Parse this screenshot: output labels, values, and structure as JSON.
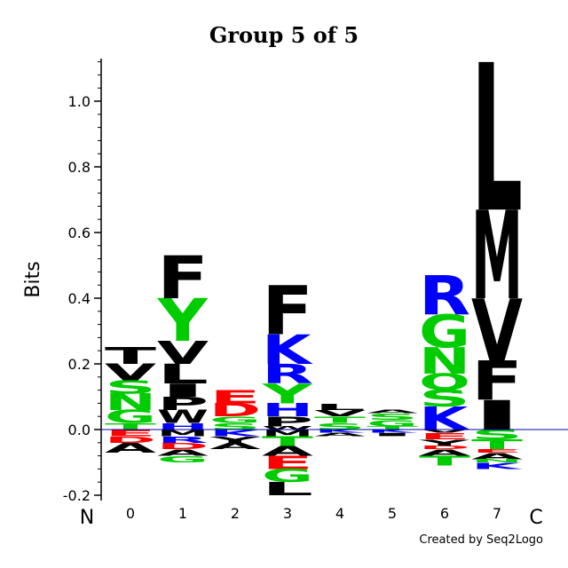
{
  "chart_data": {
    "type": "sequence-logo",
    "title": "Group 5 of 5",
    "ylabel": "Bits",
    "ylim": [
      -0.2,
      1.1
    ],
    "yticks": [
      {
        "value": -0.2,
        "label": "-0.2"
      },
      {
        "value": 0.0,
        "label": "0.0"
      },
      {
        "value": 0.2,
        "label": "0.2"
      },
      {
        "value": 0.4,
        "label": "0.4"
      },
      {
        "value": 0.6,
        "label": "0.6"
      },
      {
        "value": 0.8,
        "label": "0.8"
      },
      {
        "value": 1.0,
        "label": "1.0"
      }
    ],
    "n_terminus_label": "N",
    "c_terminus_label": "C",
    "colors": {
      "black": "#000000",
      "green": "#00cc00",
      "blue": "#0000ff",
      "red": "#ff0000",
      "baseline": "#0000aa"
    },
    "positions": [
      {
        "label": "0",
        "above": [
          {
            "letter": "T",
            "color": "#00cc00",
            "bits": 0.02
          },
          {
            "letter": "G",
            "color": "#00cc00",
            "bits": 0.04
          },
          {
            "letter": "N",
            "color": "#00cc00",
            "bits": 0.05
          },
          {
            "letter": "S",
            "color": "#00cc00",
            "bits": 0.04
          },
          {
            "letter": "V",
            "color": "#000000",
            "bits": 0.05
          },
          {
            "letter": "T",
            "color": "#000000",
            "bits": 0.05
          }
        ],
        "below": [
          {
            "letter": "E",
            "color": "#ff0000",
            "bits": 0.02
          },
          {
            "letter": "D",
            "color": "#ff0000",
            "bits": 0.02
          },
          {
            "letter": "A",
            "color": "#000000",
            "bits": 0.03
          }
        ]
      },
      {
        "label": "1",
        "above": [
          {
            "letter": "H",
            "color": "#0000ff",
            "bits": 0.02
          },
          {
            "letter": "W",
            "color": "#000000",
            "bits": 0.04
          },
          {
            "letter": "P",
            "color": "#000000",
            "bits": 0.04
          },
          {
            "letter": "I",
            "color": "#000000",
            "bits": 0.04
          },
          {
            "letter": "L",
            "color": "#000000",
            "bits": 0.06
          },
          {
            "letter": "V",
            "color": "#000000",
            "bits": 0.07
          },
          {
            "letter": "Y",
            "color": "#00cc00",
            "bits": 0.13
          },
          {
            "letter": "F",
            "color": "#000000",
            "bits": 0.13
          }
        ],
        "below": [
          {
            "letter": "M",
            "color": "#000000",
            "bits": 0.02
          },
          {
            "letter": "R",
            "color": "#0000ff",
            "bits": 0.02
          },
          {
            "letter": "D",
            "color": "#ff0000",
            "bits": 0.02
          },
          {
            "letter": "A",
            "color": "#000000",
            "bits": 0.02
          },
          {
            "letter": "G",
            "color": "#00cc00",
            "bits": 0.02
          }
        ]
      },
      {
        "label": "2",
        "above": [
          {
            "letter": "S",
            "color": "#00cc00",
            "bits": 0.02
          },
          {
            "letter": "G",
            "color": "#00cc00",
            "bits": 0.02
          },
          {
            "letter": "D",
            "color": "#ff0000",
            "bits": 0.04
          },
          {
            "letter": "E",
            "color": "#ff0000",
            "bits": 0.04
          }
        ],
        "below": [
          {
            "letter": "K",
            "color": "#0000ff",
            "bits": 0.02
          },
          {
            "letter": "Y",
            "color": "#000000",
            "bits": 0.02
          },
          {
            "letter": "A",
            "color": "#000000",
            "bits": 0.02
          }
        ]
      },
      {
        "label": "3",
        "above": [
          {
            "letter": "W",
            "color": "#000000",
            "bits": 0.01
          },
          {
            "letter": "P",
            "color": "#000000",
            "bits": 0.03
          },
          {
            "letter": "H",
            "color": "#0000ff",
            "bits": 0.04
          },
          {
            "letter": "Y",
            "color": "#00cc00",
            "bits": 0.06
          },
          {
            "letter": "R",
            "color": "#0000ff",
            "bits": 0.06
          },
          {
            "letter": "K",
            "color": "#0000ff",
            "bits": 0.09
          },
          {
            "letter": "F",
            "color": "#000000",
            "bits": 0.15
          }
        ],
        "below": [
          {
            "letter": "M",
            "color": "#000000",
            "bits": 0.02
          },
          {
            "letter": "T",
            "color": "#00cc00",
            "bits": 0.03
          },
          {
            "letter": "A",
            "color": "#000000",
            "bits": 0.03
          },
          {
            "letter": "E",
            "color": "#ff0000",
            "bits": 0.04
          },
          {
            "letter": "G",
            "color": "#00cc00",
            "bits": 0.04
          },
          {
            "letter": "L",
            "color": "#000000",
            "bits": 0.04
          }
        ]
      },
      {
        "label": "4",
        "above": [
          {
            "letter": "S",
            "color": "#00cc00",
            "bits": 0.02
          },
          {
            "letter": "T",
            "color": "#00cc00",
            "bits": 0.02
          },
          {
            "letter": "V",
            "color": "#000000",
            "bits": 0.02
          },
          {
            "letter": "L",
            "color": "#000000",
            "bits": 0.02
          }
        ],
        "below": [
          {
            "letter": "K",
            "color": "#0000ff",
            "bits": 0.01
          },
          {
            "letter": "A",
            "color": "#000000",
            "bits": 0.01
          }
        ]
      },
      {
        "label": "5",
        "above": [
          {
            "letter": "T",
            "color": "#00cc00",
            "bits": 0.01
          },
          {
            "letter": "G",
            "color": "#00cc00",
            "bits": 0.02
          },
          {
            "letter": "S",
            "color": "#00cc00",
            "bits": 0.02
          },
          {
            "letter": "A",
            "color": "#000000",
            "bits": 0.01
          }
        ],
        "below": [
          {
            "letter": "K",
            "color": "#0000ff",
            "bits": 0.01
          },
          {
            "letter": "I",
            "color": "#000000",
            "bits": 0.01
          }
        ]
      },
      {
        "label": "6",
        "above": [
          {
            "letter": "K",
            "color": "#0000ff",
            "bits": 0.07
          },
          {
            "letter": "S",
            "color": "#00cc00",
            "bits": 0.05
          },
          {
            "letter": "Q",
            "color": "#00cc00",
            "bits": 0.05
          },
          {
            "letter": "N",
            "color": "#00cc00",
            "bits": 0.08
          },
          {
            "letter": "G",
            "color": "#00cc00",
            "bits": 0.1
          },
          {
            "letter": "R",
            "color": "#0000ff",
            "bits": 0.12
          }
        ],
        "below": [
          {
            "letter": "V",
            "color": "#000000",
            "bits": 0.01
          },
          {
            "letter": "E",
            "color": "#ff0000",
            "bits": 0.02
          },
          {
            "letter": "Y",
            "color": "#000000",
            "bits": 0.02
          },
          {
            "letter": "D",
            "color": "#ff0000",
            "bits": 0.01
          },
          {
            "letter": "A",
            "color": "#000000",
            "bits": 0.02
          },
          {
            "letter": "T",
            "color": "#00cc00",
            "bits": 0.03
          }
        ]
      },
      {
        "label": "7",
        "above": [
          {
            "letter": "I",
            "color": "#000000",
            "bits": 0.09
          },
          {
            "letter": "F",
            "color": "#000000",
            "bits": 0.12
          },
          {
            "letter": "V",
            "color": "#000000",
            "bits": 0.19
          },
          {
            "letter": "M",
            "color": "#000000",
            "bits": 0.27
          },
          {
            "letter": "L",
            "color": "#000000",
            "bits": 0.45
          }
        ],
        "below": [
          {
            "letter": "S",
            "color": "#00cc00",
            "bits": 0.03
          },
          {
            "letter": "T",
            "color": "#00cc00",
            "bits": 0.03
          },
          {
            "letter": "E",
            "color": "#ff0000",
            "bits": 0.01
          },
          {
            "letter": "A",
            "color": "#000000",
            "bits": 0.02
          },
          {
            "letter": "N",
            "color": "#00cc00",
            "bits": 0.01
          },
          {
            "letter": "K",
            "color": "#0000ff",
            "bits": 0.02
          }
        ]
      }
    ]
  },
  "credit": "Created by Seq2Logo"
}
